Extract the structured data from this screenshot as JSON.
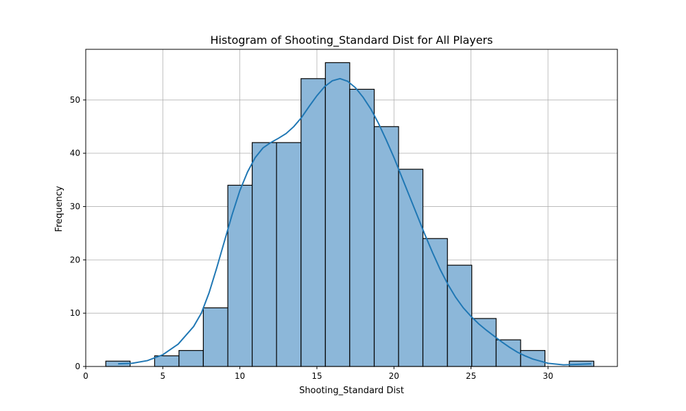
{
  "chart_data": {
    "type": "bar",
    "title": "Histogram of Shooting_Standard Dist for All Players",
    "xlabel": "Shooting_Standard Dist",
    "ylabel": "Frequency",
    "xlim": [
      0,
      34.5
    ],
    "ylim": [
      0,
      59.5
    ],
    "xticks": [
      0,
      5,
      10,
      15,
      20,
      25,
      30
    ],
    "yticks": [
      0,
      10,
      20,
      30,
      40,
      50
    ],
    "grid": true,
    "bar_color": "#8cb7d9",
    "kde_color": "#1f77b4",
    "bins": [
      {
        "x0": 1.3,
        "x1": 2.88,
        "count": 1
      },
      {
        "x0": 2.88,
        "x1": 4.47,
        "count": 0
      },
      {
        "x0": 4.47,
        "x1": 6.05,
        "count": 2
      },
      {
        "x0": 6.05,
        "x1": 7.63,
        "count": 3
      },
      {
        "x0": 7.63,
        "x1": 9.22,
        "count": 11
      },
      {
        "x0": 9.22,
        "x1": 10.8,
        "count": 34
      },
      {
        "x0": 10.8,
        "x1": 12.38,
        "count": 42
      },
      {
        "x0": 12.38,
        "x1": 13.97,
        "count": 42
      },
      {
        "x0": 13.97,
        "x1": 15.55,
        "count": 54
      },
      {
        "x0": 15.55,
        "x1": 17.13,
        "count": 57
      },
      {
        "x0": 17.13,
        "x1": 18.72,
        "count": 52
      },
      {
        "x0": 18.72,
        "x1": 20.3,
        "count": 45
      },
      {
        "x0": 20.3,
        "x1": 21.88,
        "count": 37
      },
      {
        "x0": 21.88,
        "x1": 23.47,
        "count": 24
      },
      {
        "x0": 23.47,
        "x1": 25.05,
        "count": 19
      },
      {
        "x0": 25.05,
        "x1": 26.63,
        "count": 9
      },
      {
        "x0": 26.63,
        "x1": 28.22,
        "count": 5
      },
      {
        "x0": 28.22,
        "x1": 29.8,
        "count": 3
      },
      {
        "x0": 29.8,
        "x1": 31.38,
        "count": 0
      },
      {
        "x0": 31.38,
        "x1": 32.97,
        "count": 1
      }
    ],
    "kde": [
      [
        2.1,
        0.5
      ],
      [
        3,
        0.6
      ],
      [
        4,
        1.1
      ],
      [
        5,
        2.2
      ],
      [
        6,
        4.2
      ],
      [
        7,
        7.5
      ],
      [
        7.5,
        10
      ],
      [
        8,
        13.8
      ],
      [
        8.5,
        18.5
      ],
      [
        9,
        23.5
      ],
      [
        9.5,
        28.5
      ],
      [
        10,
        33
      ],
      [
        10.5,
        36.5
      ],
      [
        11,
        39.2
      ],
      [
        11.5,
        41
      ],
      [
        12,
        42
      ],
      [
        12.5,
        42.8
      ],
      [
        13,
        43.7
      ],
      [
        13.5,
        45
      ],
      [
        14,
        46.7
      ],
      [
        14.5,
        48.8
      ],
      [
        15,
        50.8
      ],
      [
        15.5,
        52.5
      ],
      [
        16,
        53.6
      ],
      [
        16.5,
        54
      ],
      [
        17,
        53.5
      ],
      [
        17.5,
        52.3
      ],
      [
        18,
        50.5
      ],
      [
        18.5,
        48.3
      ],
      [
        19,
        45.6
      ],
      [
        19.5,
        42.5
      ],
      [
        20,
        39.2
      ],
      [
        20.5,
        35.6
      ],
      [
        21,
        32
      ],
      [
        21.5,
        28.4
      ],
      [
        22,
        24.8
      ],
      [
        22.5,
        21.4
      ],
      [
        23,
        18.2
      ],
      [
        23.5,
        15.4
      ],
      [
        24,
        13
      ],
      [
        24.5,
        11
      ],
      [
        25,
        9.4
      ],
      [
        25.5,
        8
      ],
      [
        26,
        6.8
      ],
      [
        26.5,
        5.7
      ],
      [
        27,
        4.6
      ],
      [
        27.5,
        3.6
      ],
      [
        28,
        2.7
      ],
      [
        28.5,
        2
      ],
      [
        29,
        1.4
      ],
      [
        29.5,
        1
      ],
      [
        30,
        0.6
      ],
      [
        31,
        0.3
      ],
      [
        32,
        0.4
      ],
      [
        32.8,
        0.5
      ]
    ]
  }
}
